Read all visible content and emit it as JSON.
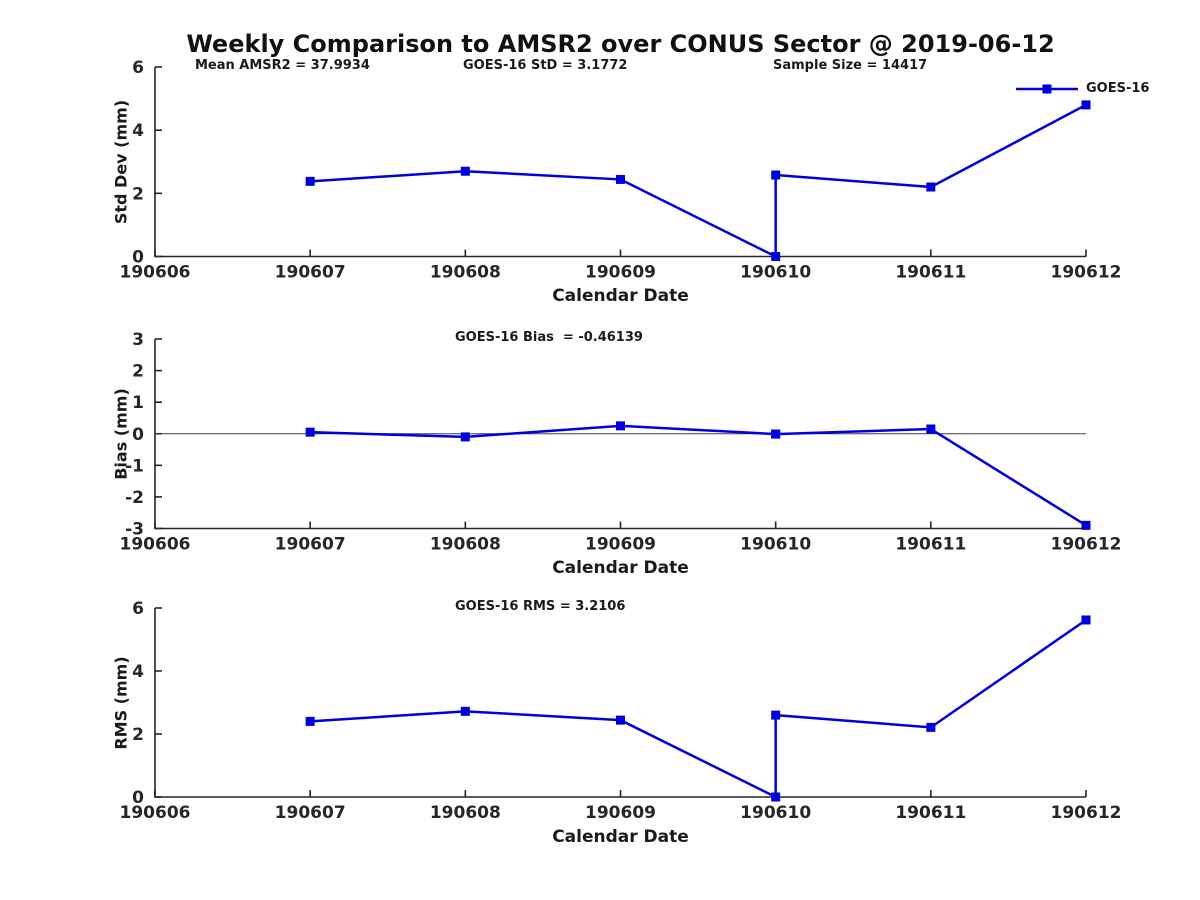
{
  "title": "Weekly Comparison to AMSR2 over CONUS Sector @ 2019-06-12",
  "colors": {
    "line": "#0000dd",
    "axis": "#262626",
    "tick_text": "#262626",
    "text": "#1a1a1a",
    "zero_line": "#404040",
    "background": "#ffffff"
  },
  "chart_data": [
    {
      "type": "line",
      "ylabel": "Std Dev (mm)",
      "xlabel": "Calendar Date",
      "ylim": [
        0,
        6
      ],
      "yticks": [
        0,
        2,
        4,
        6
      ],
      "xlim": [
        190606,
        190612
      ],
      "xticks": [
        "190606",
        "190607",
        "190608",
        "190609",
        "190610",
        "190611",
        "190612"
      ],
      "grid": false,
      "zero_line": false,
      "legend_position": "top-right-inside",
      "annotations": [
        {
          "text": "Mean AMSR2 = 37.9934"
        },
        {
          "text": "GOES-16 StD = 3.1772"
        },
        {
          "text": "Sample Size = 14417"
        }
      ],
      "series": [
        {
          "name": "GOES-16",
          "marker": "square",
          "x": [
            190607,
            190608,
            190609,
            190610,
            190610,
            190611,
            190612
          ],
          "y": [
            2.38,
            2.7,
            2.44,
            0.0,
            2.58,
            2.2,
            4.8
          ]
        }
      ]
    },
    {
      "type": "line",
      "ylabel": "Bias (mm)",
      "xlabel": "Calendar Date",
      "ylim": [
        -3,
        3
      ],
      "yticks": [
        3,
        2,
        1,
        0,
        -1,
        -2,
        -3
      ],
      "xlim": [
        190606,
        190612
      ],
      "xticks": [
        "190606",
        "190607",
        "190608",
        "190609",
        "190610",
        "190611",
        "190612"
      ],
      "grid": false,
      "zero_line": true,
      "legend_position": "none",
      "annotations": [
        {
          "text": "GOES-16 Bias  = -0.46139"
        }
      ],
      "series": [
        {
          "name": "GOES-16",
          "marker": "square",
          "x": [
            190607,
            190608,
            190609,
            190610,
            190610,
            190611,
            190612
          ],
          "y": [
            0.05,
            -0.1,
            0.25,
            -0.01,
            -0.01,
            0.15,
            -2.9
          ]
        }
      ]
    },
    {
      "type": "line",
      "ylabel": "RMS (mm)",
      "xlabel": "Calendar Date",
      "ylim": [
        0,
        6
      ],
      "yticks": [
        0,
        2,
        4,
        6
      ],
      "xlim": [
        190606,
        190612
      ],
      "xticks": [
        "190606",
        "190607",
        "190608",
        "190609",
        "190610",
        "190611",
        "190612"
      ],
      "grid": false,
      "zero_line": false,
      "legend_position": "none",
      "annotations": [
        {
          "text": "GOES-16 RMS = 3.2106"
        }
      ],
      "series": [
        {
          "name": "GOES-16",
          "marker": "square",
          "x": [
            190607,
            190608,
            190609,
            190610,
            190610,
            190611,
            190612
          ],
          "y": [
            2.4,
            2.72,
            2.44,
            0.0,
            2.6,
            2.21,
            5.62
          ]
        }
      ]
    }
  ]
}
